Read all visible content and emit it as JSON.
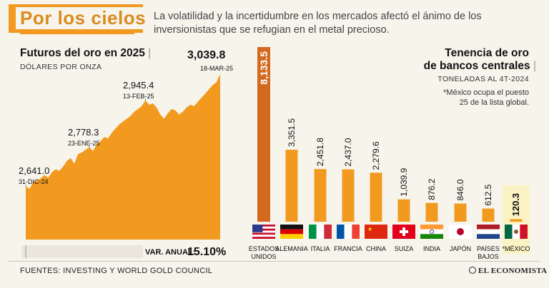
{
  "header": {
    "title": "Por los cielos",
    "subtitle": "La volatilidad y la incertidumbre en los mercados afectó el ánimo de los inversionistas que se refugian en el metal precioso."
  },
  "left_chart": {
    "title": "Futuros del oro en 2025",
    "units": "DÓLARES POR ONZA",
    "annual_change_label": "VAR. ANUAL:",
    "annual_change_value": "15.10%"
  },
  "right_chart": {
    "title_line1": "Tenencia de oro",
    "title_line2": "de bancos centrales",
    "units": "TONELADAS AL 4T-2024",
    "note_line1": "*México ocupa el puesto",
    "note_line2": "25 de la lista global."
  },
  "footer": {
    "source": "FUENTES: INVESTING Y WORLD GOLD COUNCIL",
    "brand": "EL ECONOMISTA"
  },
  "colors": {
    "accent": "#f29a1f",
    "dark_bar": "#d2691e",
    "text": "#222222",
    "highlight": "#fcf3c4"
  },
  "chart_data": [
    {
      "type": "area",
      "title": "Futuros del oro en 2025",
      "ylabel": "DÓLARES POR ONZA",
      "ylim": [
        2450,
        3100
      ],
      "annotations": [
        {
          "value": "2,641.0",
          "date": "31-DIC-24"
        },
        {
          "value": "2,778.3",
          "date": "23-ENE-25"
        },
        {
          "value": "2,945.4",
          "date": "13-FEB-25"
        },
        {
          "value": "3,039.8",
          "date": "18-MAR-25"
        }
      ],
      "values": [
        2641.0,
        2630,
        2655,
        2660,
        2668,
        2680,
        2670,
        2690,
        2700,
        2695,
        2710,
        2730,
        2740,
        2720,
        2755,
        2760,
        2770,
        2778.3,
        2765,
        2790,
        2800,
        2815,
        2810,
        2830,
        2845,
        2860,
        2870,
        2880,
        2890,
        2905,
        2915,
        2925,
        2945.4,
        2930,
        2935,
        2920,
        2895,
        2880,
        2900,
        2915,
        2910,
        2895,
        2905,
        2920,
        2930,
        2925,
        2940,
        2955,
        2970,
        2985,
        3000,
        3010,
        3039.8
      ]
    },
    {
      "type": "bar",
      "title": "Tenencia de oro de bancos centrales",
      "ylabel": "TONELADAS AL 4T-2024",
      "categories": [
        "ESTADOS UNIDOS",
        "ALEMANIA",
        "ITALIA",
        "FRANCIA",
        "CHINA",
        "SUIZA",
        "INDIA",
        "JAPÓN",
        "PAÍSES BAJOS",
        "*MÉXICO"
      ],
      "values": [
        8133.5,
        3351.5,
        2451.8,
        2437.0,
        2279.6,
        1039.9,
        876.2,
        846.0,
        612.5,
        120.3
      ],
      "value_labels": [
        "8,133.5",
        "3,351.5",
        "2,451.8",
        "2,437.0",
        "2,279.6",
        "1,039.9",
        "876.2",
        "846.0",
        "612.5",
        "120.3"
      ],
      "category_lines": [
        [
          "ESTADOS",
          "UNIDOS"
        ],
        [
          "ALEMANIA"
        ],
        [
          "ITALIA"
        ],
        [
          "FRANCIA"
        ],
        [
          "CHINA"
        ],
        [
          "SUIZA"
        ],
        [
          "INDIA"
        ],
        [
          "JAPÓN"
        ],
        [
          "PAÍSES",
          "BAJOS"
        ],
        [
          "*MÉXICO"
        ]
      ],
      "flags": [
        "us-flag-icon",
        "germany-flag-icon",
        "italy-flag-icon",
        "france-flag-icon",
        "china-flag-icon",
        "switzerland-flag-icon",
        "india-flag-icon",
        "japan-flag-icon",
        "netherlands-flag-icon",
        "mexico-flag-icon"
      ]
    }
  ]
}
